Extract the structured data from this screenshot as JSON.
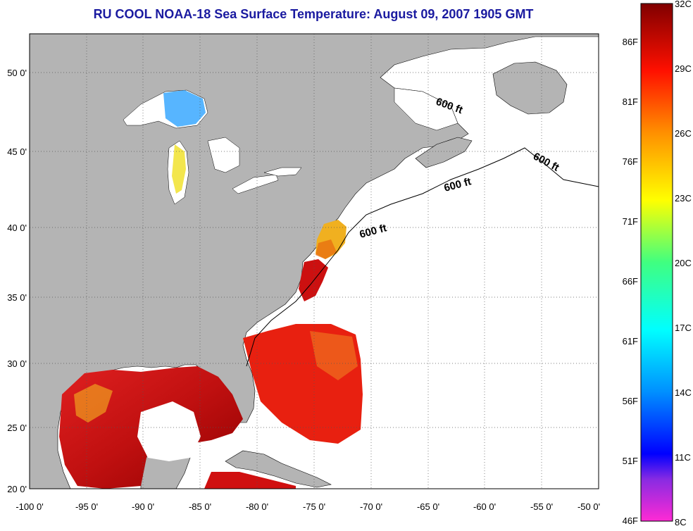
{
  "title": "RU COOL  NOAA-18  Sea Surface Temperature:  August 09, 2007 1905 GMT",
  "axes": {
    "lon_ticks": [
      "-100 0'",
      "-95 0'",
      "-90 0'",
      "-85 0'",
      "-80 0'",
      "-75 0'",
      "-70 0'",
      "-65 0'",
      "-60 0'",
      "-55 0'",
      "-50 0'"
    ],
    "lat_ticks": [
      "50 0'",
      "45 0'",
      "40 0'",
      "35 0'",
      "30 0'",
      "25 0'",
      "20 0'"
    ]
  },
  "map": {
    "lon_range": [
      -100,
      -50
    ],
    "lat_range": [
      20,
      52.5
    ],
    "land_color": "#b4b4b4",
    "ocean_color": "#ffffff",
    "contour_labels": [
      "600 ft",
      "600 ft",
      "600 ft",
      "600 ft"
    ]
  },
  "colorbar": {
    "celsius_labels": [
      "32C",
      "29C",
      "26C",
      "23C",
      "20C",
      "17C",
      "14C",
      "11C",
      "8C"
    ],
    "fahrenheit_labels": [
      "86F",
      "81F",
      "76F",
      "71F",
      "66F",
      "61F",
      "56F",
      "51F",
      "46F"
    ],
    "range_c": [
      8,
      32
    ]
  }
}
